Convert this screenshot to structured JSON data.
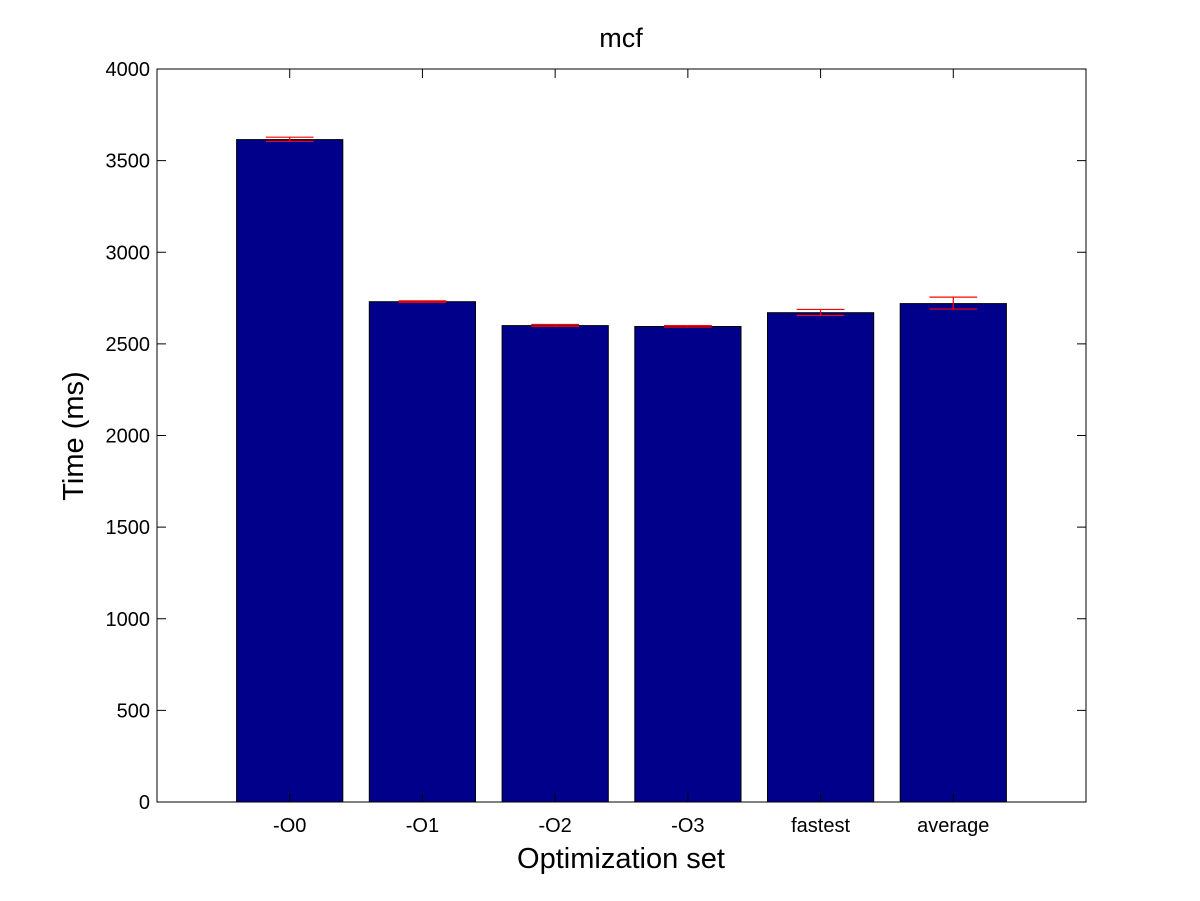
{
  "chart_data": {
    "type": "bar",
    "title": "mcf",
    "xlabel": "Optimization set",
    "ylabel": "Time (ms)",
    "categories": [
      "-O0",
      "-O1",
      "-O2",
      "-O3",
      "fastest",
      "average"
    ],
    "values": [
      3615,
      2730,
      2600,
      2595,
      2670,
      2720
    ],
    "error_low": [
      3605,
      2727,
      2596,
      2592,
      2655,
      2690
    ],
    "error_high": [
      3628,
      2735,
      2606,
      2600,
      2688,
      2755
    ],
    "ylim": [
      0,
      4000
    ],
    "yticks": [
      0,
      500,
      1000,
      1500,
      2000,
      2500,
      3000,
      3500,
      4000
    ],
    "ytick_labels": [
      "0",
      "500",
      "1000",
      "1500",
      "2000",
      "2500",
      "3000",
      "3500",
      "4000"
    ],
    "grid": false,
    "colors": {
      "bar": "#00008b",
      "error_bar": "#ff0000",
      "axis": "#000000"
    }
  }
}
